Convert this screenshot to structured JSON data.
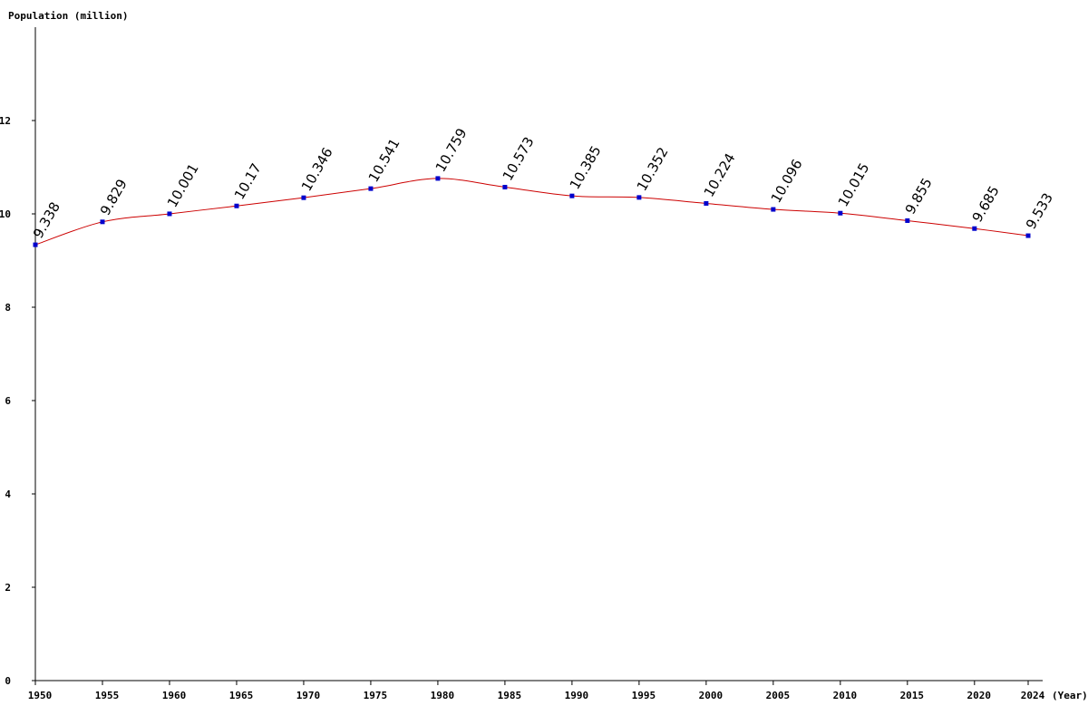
{
  "chart_data": {
    "type": "line",
    "ylabel": "Population (million)",
    "xlabel": "(Year)",
    "x": [
      1950,
      1955,
      1960,
      1965,
      1970,
      1975,
      1980,
      1985,
      1990,
      1995,
      2000,
      2005,
      2010,
      2015,
      2020,
      2024
    ],
    "values": [
      9.338,
      9.829,
      10.001,
      10.17,
      10.346,
      10.541,
      10.759,
      10.573,
      10.385,
      10.352,
      10.224,
      10.096,
      10.015,
      9.855,
      9.685,
      9.533
    ],
    "data_labels": [
      "9.338",
      "9.829",
      "10.001",
      "10.17",
      "10.346",
      "10.541",
      "10.759",
      "10.573",
      "10.385",
      "10.352",
      "10.224",
      "10.096",
      "10.015",
      "9.855",
      "9.685",
      "9.533"
    ],
    "ylim": [
      0,
      14
    ],
    "yticks": [
      0,
      2,
      4,
      6,
      8,
      10,
      12
    ],
    "ytick_labels": [
      "0",
      "2",
      "4",
      "6",
      "8",
      "10",
      "12"
    ],
    "xtick_labels": [
      "1950",
      "1955",
      "1960",
      "1965",
      "1970",
      "1975",
      "1980",
      "1985",
      "1990",
      "1995",
      "2000",
      "2005",
      "2010",
      "2015",
      "2020",
      "2024"
    ],
    "grid": false,
    "colors": {
      "line": "#cc0000",
      "marker": "#0000cc",
      "axis": "#000000"
    }
  }
}
